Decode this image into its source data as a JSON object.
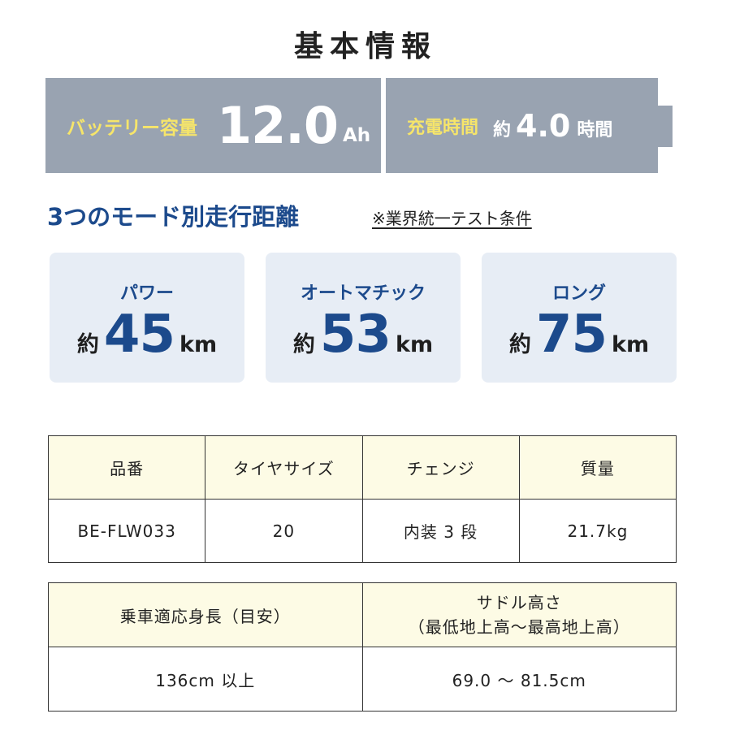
{
  "title": "基本情報",
  "battery": {
    "capacity_label": "バッテリー容量",
    "capacity_value": "12.0",
    "capacity_unit": "Ah",
    "charge_label": "充電時間",
    "charge_prefix": "約",
    "charge_value": "4.0",
    "charge_unit": "時間"
  },
  "modes": {
    "heading": "3つのモード別走行距離",
    "note": "※業界統一テスト条件",
    "items": [
      {
        "name": "パワー",
        "prefix": "約",
        "value": "45",
        "unit": "km"
      },
      {
        "name": "オートマチック",
        "prefix": "約",
        "value": "53",
        "unit": "km"
      },
      {
        "name": "ロング",
        "prefix": "約",
        "value": "75",
        "unit": "km"
      }
    ]
  },
  "spec_table_1": {
    "headers": [
      "品番",
      "タイヤサイズ",
      "チェンジ",
      "質量"
    ],
    "values": [
      "BE-FLW033",
      "20",
      "内装 3 段",
      "21.7kg"
    ]
  },
  "spec_table_2": {
    "headers": [
      "乗車適応身長（目安）",
      "サドル高さ",
      "（最低地上高〜最高地上高）"
    ],
    "values": [
      "136cm 以上",
      "69.0 〜 81.5cm"
    ]
  },
  "colors": {
    "accent_blue": "#1c4a8c",
    "battery_gray": "#99a3b1",
    "battery_yellow": "#f6e56a",
    "card_bg": "#e7edf5",
    "table_header_bg": "#fdfbe5"
  }
}
